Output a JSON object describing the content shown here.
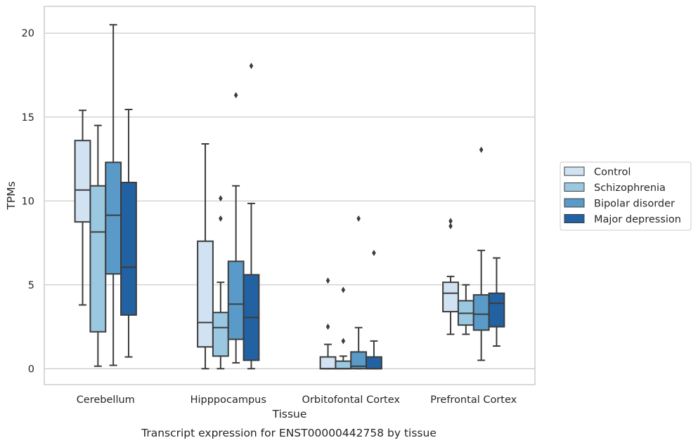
{
  "chart_data": {
    "type": "box",
    "title": "Transcript expression for ENST00000442758 by tissue",
    "xlabel": "Tissue",
    "ylabel": "TPMs",
    "ylim": [
      -0.95,
      21.6
    ],
    "yticks": [
      0,
      5,
      10,
      15,
      20
    ],
    "grid": true,
    "legend_position": "right",
    "categories": [
      "Cerebellum",
      "Hipppocampus",
      "Orbitofontal Cortex",
      "Prefrontal Cortex"
    ],
    "series": [
      {
        "name": "Control",
        "color": "#d1e2f2",
        "boxes": [
          {
            "whislo": 3.8,
            "q1": 8.75,
            "med": 10.65,
            "q3": 13.6,
            "whishi": 15.4,
            "fliers": []
          },
          {
            "whislo": 0.0,
            "q1": 1.3,
            "med": 2.75,
            "q3": 7.6,
            "whishi": 13.4,
            "fliers": []
          },
          {
            "whislo": 0.0,
            "q1": 0.0,
            "med": 0.0,
            "q3": 0.7,
            "whishi": 1.45,
            "fliers": [
              2.5,
              5.25
            ]
          },
          {
            "whislo": 2.05,
            "q1": 3.4,
            "med": 4.5,
            "q3": 5.15,
            "whishi": 5.5,
            "fliers": [
              8.5,
              8.8
            ]
          }
        ]
      },
      {
        "name": "Schizophrenia",
        "color": "#9ac8e1",
        "boxes": [
          {
            "whislo": 0.15,
            "q1": 2.2,
            "med": 8.15,
            "q3": 10.9,
            "whishi": 14.5,
            "fliers": []
          },
          {
            "whislo": 0.0,
            "q1": 0.75,
            "med": 2.45,
            "q3": 3.35,
            "whishi": 5.15,
            "fliers": [
              8.95,
              10.15
            ]
          },
          {
            "whislo": 0.0,
            "q1": 0.0,
            "med": 0.0,
            "q3": 0.45,
            "whishi": 0.75,
            "fliers": [
              1.65,
              4.7
            ]
          },
          {
            "whislo": 2.05,
            "q1": 2.6,
            "med": 3.3,
            "q3": 4.05,
            "whishi": 5.0,
            "fliers": []
          }
        ]
      },
      {
        "name": "Bipolar disorder",
        "color": "#5a9ac8",
        "boxes": [
          {
            "whislo": 0.2,
            "q1": 5.65,
            "med": 9.15,
            "q3": 12.3,
            "whishi": 20.5,
            "fliers": []
          },
          {
            "whislo": 0.35,
            "q1": 1.75,
            "med": 3.85,
            "q3": 6.4,
            "whishi": 10.9,
            "fliers": [
              16.3
            ]
          },
          {
            "whislo": 0.0,
            "q1": 0.0,
            "med": 0.15,
            "q3": 1.0,
            "whishi": 2.45,
            "fliers": [
              8.95
            ]
          },
          {
            "whislo": 0.5,
            "q1": 2.3,
            "med": 3.25,
            "q3": 4.4,
            "whishi": 7.05,
            "fliers": [
              13.05
            ]
          }
        ]
      },
      {
        "name": "Major depression",
        "color": "#2262a2",
        "boxes": [
          {
            "whislo": 0.7,
            "q1": 3.2,
            "med": 6.05,
            "q3": 11.1,
            "whishi": 15.45,
            "fliers": []
          },
          {
            "whislo": 0.0,
            "q1": 0.5,
            "med": 3.05,
            "q3": 5.6,
            "whishi": 9.85,
            "fliers": [
              18.05
            ]
          },
          {
            "whislo": 0.0,
            "q1": 0.0,
            "med": 0.0,
            "q3": 0.7,
            "whishi": 1.65,
            "fliers": [
              6.9
            ]
          },
          {
            "whislo": 1.35,
            "q1": 2.5,
            "med": 3.9,
            "q3": 4.5,
            "whishi": 6.6,
            "fliers": []
          }
        ]
      }
    ]
  },
  "colors": {
    "axis_frame": "#cccccc",
    "gridline": "#cccccc",
    "box_edge": "#3c3c3c",
    "flier": "#3c3c3c",
    "text": "#262626"
  }
}
